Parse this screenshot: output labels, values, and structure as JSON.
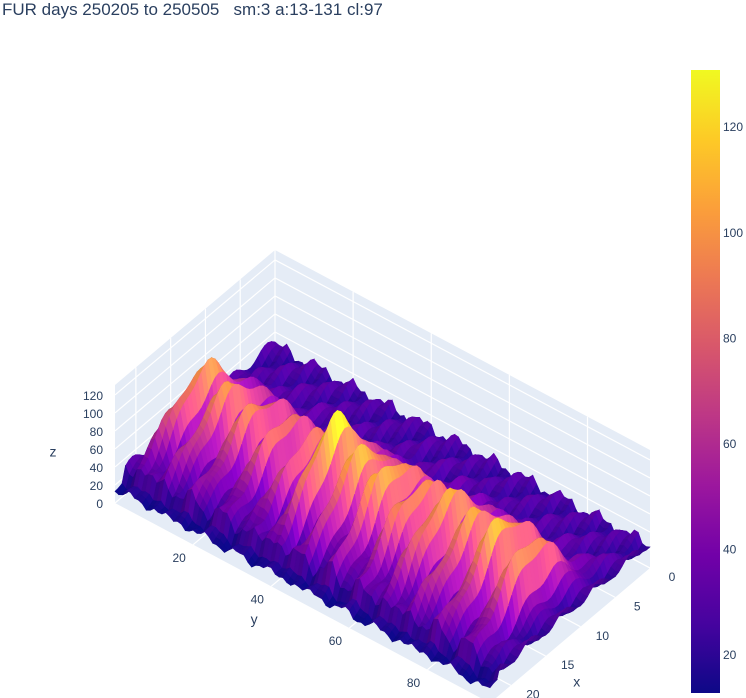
{
  "title": "FUR days 250205 to 250505   sm:3 a:13-131 cl:97",
  "chart_data": {
    "type": "surface",
    "colorscale": "plasma",
    "x_axis": {
      "label": "x",
      "range": [
        0,
        23
      ],
      "ticks": [
        "0",
        "5",
        "10",
        "15",
        "20"
      ],
      "tick_values": [
        0,
        5,
        10,
        15,
        20
      ]
    },
    "y_axis": {
      "label": "y",
      "range": [
        0,
        96
      ],
      "ticks": [
        "20",
        "40",
        "60",
        "80"
      ],
      "tick_values": [
        20,
        40,
        60,
        80
      ]
    },
    "z_axis": {
      "label": "z",
      "range": [
        0,
        131
      ],
      "ticks": [
        "0",
        "20",
        "40",
        "60",
        "80",
        "100",
        "120"
      ],
      "tick_values": [
        0,
        20,
        40,
        60,
        80,
        100,
        120
      ]
    },
    "colorbar": {
      "range": [
        13,
        131
      ],
      "ticks": [
        "20",
        "40",
        "60",
        "80",
        "100",
        "120"
      ],
      "tick_values": [
        20,
        40,
        60,
        80,
        100,
        120
      ]
    },
    "ridges_y": [
      5.5,
      12,
      19,
      26,
      33,
      40,
      47,
      54,
      61,
      68,
      75,
      82,
      89
    ],
    "ridge_peaks": [
      105,
      100,
      95,
      90,
      88,
      125,
      110,
      112,
      105,
      110,
      105,
      112,
      100
    ],
    "daily_peak_x_range": [
      8,
      20
    ],
    "baseline_level": 25
  }
}
